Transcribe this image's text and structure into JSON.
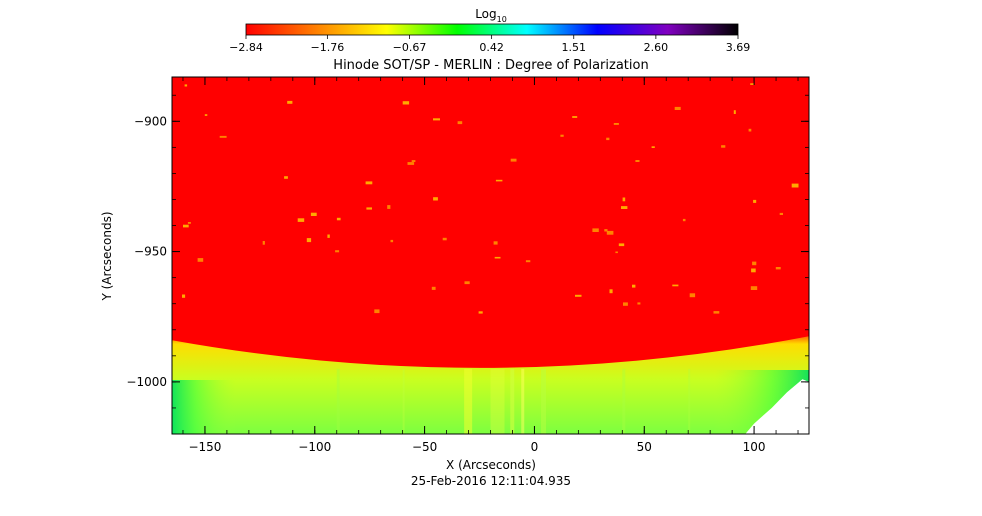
{
  "chart_data": {
    "type": "heatmap",
    "title": "Hinode SOT/SP - MERLIN : Degree of Polarization",
    "xlabel": "X (Arcseconds)",
    "ylabel": "Y (Arcseconds)",
    "xlim": [
      -165,
      125
    ],
    "ylim": [
      -1020,
      -883
    ],
    "x_ticks": [
      -150,
      -100,
      -50,
      0,
      50,
      100
    ],
    "y_ticks": [
      -900,
      -950,
      -1000
    ],
    "x_tick_labels": [
      "−150",
      "−100",
      "−50",
      "0",
      "50",
      "100"
    ],
    "y_tick_labels": [
      "−900",
      "−950",
      "−1000"
    ],
    "timestamp": "25-Feb-2016 12:11:04.935",
    "colorbar": {
      "label_base": "Log",
      "label_sub": "10",
      "range": [
        -2.84,
        3.69
      ],
      "ticks": [
        -2.84,
        -1.76,
        -0.67,
        0.42,
        1.51,
        2.6,
        3.69
      ],
      "tick_labels": [
        "−2.84",
        "−1.76",
        "−0.67",
        "0.42",
        "1.51",
        "2.60",
        "3.69"
      ],
      "colors": [
        "#ff0000",
        "#ff8000",
        "#ffff00",
        "#00ff00",
        "#00ffff",
        "#0000ff",
        "#8000c0",
        "#000000"
      ]
    },
    "regions": {
      "disk_value": -2.84,
      "limb_edge_y_center": -995,
      "limb_edge_y_sides": -984,
      "limb_band_values": [
        -1.4,
        -0.9,
        -0.4,
        0.2,
        0.6
      ]
    },
    "grid": false,
    "legend": "none"
  }
}
